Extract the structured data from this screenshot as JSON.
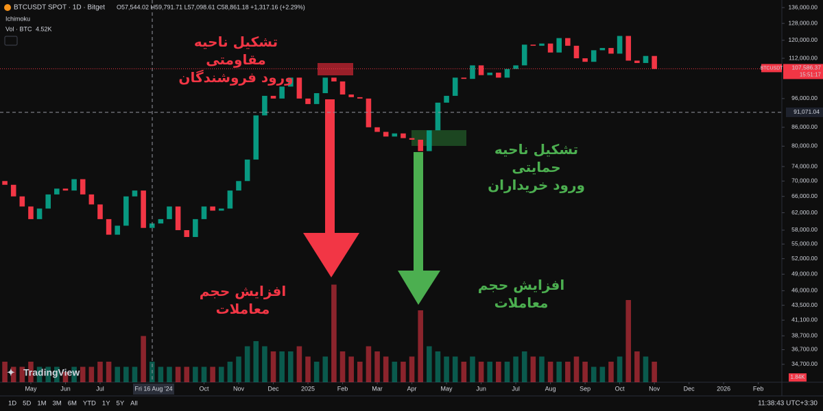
{
  "chart_data": {
    "type": "candlestick",
    "symbol_title": "BTCUSDT SPOT · 1D · Bitget",
    "ohlc_legend": "O57,544.02 H59,791.71 L57,098.61 C58,861.18 +1,317.16 (+2.29%)",
    "indicator": "Ichimoku",
    "volume_title": "Vol · BTC",
    "volume_value": "4.52K",
    "log_scale": true,
    "up_color": "#089981",
    "down_color": "#f23645",
    "ylim": [
      32400,
      140000
    ],
    "yticks": [
      {
        "value": 136000,
        "label": "136,000.00"
      },
      {
        "value": 128000,
        "label": "128,000.00"
      },
      {
        "value": 120000,
        "label": "120,000.00"
      },
      {
        "value": 112000,
        "label": "112,000.00"
      },
      {
        "value": 96000,
        "label": "96,000.00"
      },
      {
        "value": 86000,
        "label": "86,000.00"
      },
      {
        "value": 80000,
        "label": "80,000.00"
      },
      {
        "value": 74000,
        "label": "74,000.00"
      },
      {
        "value": 70000,
        "label": "70,000.00"
      },
      {
        "value": 66000,
        "label": "66,000.00"
      },
      {
        "value": 62000,
        "label": "62,000.00"
      },
      {
        "value": 58000,
        "label": "58,000.00"
      },
      {
        "value": 55000,
        "label": "55,000.00"
      },
      {
        "value": 52000,
        "label": "52,000.00"
      },
      {
        "value": 49000,
        "label": "49,000.00"
      },
      {
        "value": 46000,
        "label": "46,000.00"
      },
      {
        "value": 43500,
        "label": "43,500.00"
      },
      {
        "value": 41100,
        "label": "41,100.00"
      },
      {
        "value": 38700,
        "label": "38,700.00"
      },
      {
        "value": 36700,
        "label": "36,700.00"
      },
      {
        "value": 34700,
        "label": "34,700.00"
      }
    ],
    "xlim": [
      3.11,
      25.68
    ],
    "xticks": [
      {
        "value": 4,
        "label": "May"
      },
      {
        "value": 5,
        "label": "Jun"
      },
      {
        "value": 6,
        "label": "Jul"
      },
      {
        "value": 9,
        "label": "Oct"
      },
      {
        "value": 10,
        "label": "Nov"
      },
      {
        "value": 11,
        "label": "Dec"
      },
      {
        "value": 12,
        "label": "2025"
      },
      {
        "value": 13,
        "label": "Feb"
      },
      {
        "value": 14,
        "label": "Mar"
      },
      {
        "value": 15,
        "label": "Apr"
      },
      {
        "value": 16,
        "label": "May"
      },
      {
        "value": 17,
        "label": "Jun"
      },
      {
        "value": 18,
        "label": "Jul"
      },
      {
        "value": 19,
        "label": "Aug"
      },
      {
        "value": 20,
        "label": "Sep"
      },
      {
        "value": 21,
        "label": "Oct"
      },
      {
        "value": 22,
        "label": "Nov"
      },
      {
        "value": 23,
        "label": "Dec"
      },
      {
        "value": 24,
        "label": "2026"
      },
      {
        "value": 25,
        "label": "Feb"
      }
    ],
    "x": [
      3.25,
      3.5,
      3.75,
      4,
      4.25,
      4.5,
      4.75,
      5,
      5.25,
      5.5,
      5.75,
      6,
      6.25,
      6.5,
      6.75,
      7,
      7.25,
      7.5,
      7.75,
      8,
      8.25,
      8.5,
      8.75,
      9,
      9.25,
      9.5,
      9.75,
      10,
      10.25,
      10.5,
      10.75,
      11,
      11.25,
      11.5,
      11.75,
      12,
      12.25,
      12.5,
      12.75,
      13,
      13.25,
      13.5,
      13.75,
      14,
      14.25,
      14.5,
      14.75,
      15,
      15.25,
      15.5,
      15.75,
      16,
      16.25,
      16.5,
      16.75,
      17,
      17.25,
      17.5,
      17.75,
      18,
      18.25,
      18.5,
      18.75,
      19,
      19.25,
      19.5,
      19.75,
      20,
      20.25,
      20.5,
      20.75,
      21,
      21.25,
      21.5,
      21.75,
      22
    ],
    "open": [
      70000,
      69000,
      66000,
      63500,
      60500,
      63000,
      66500,
      68000,
      67500,
      70500,
      66500,
      64000,
      60500,
      57000,
      59000,
      66000,
      67500,
      58500,
      59500,
      60500,
      63500,
      58000,
      56500,
      60500,
      63500,
      62500,
      63000,
      67500,
      70000,
      76000,
      90000,
      97000,
      96000,
      100500,
      104000,
      96000,
      94000,
      98000,
      104000,
      102500,
      97500,
      96500,
      96000,
      86000,
      84500,
      83000,
      84000,
      82500,
      82000,
      78500,
      85000,
      94500,
      97000,
      104000,
      103500,
      109000,
      105000,
      106000,
      104000,
      107500,
      109000,
      118000,
      117500,
      118500,
      114500,
      121000,
      117500,
      112000,
      110500,
      115500,
      116500,
      114000,
      122000,
      111000,
      110000,
      113000
    ],
    "close": [
      69000,
      66000,
      63500,
      60500,
      63000,
      66500,
      68000,
      67500,
      70500,
      66500,
      64000,
      60500,
      57000,
      59000,
      66000,
      67500,
      58500,
      59500,
      60500,
      63500,
      58000,
      56500,
      60500,
      63500,
      62500,
      63000,
      67500,
      70000,
      76000,
      90000,
      97000,
      96000,
      100500,
      104000,
      96000,
      94000,
      98000,
      104000,
      102500,
      97500,
      96500,
      96000,
      86000,
      84500,
      83000,
      84000,
      82500,
      82000,
      78500,
      85000,
      94500,
      97000,
      104000,
      103500,
      109000,
      105000,
      106000,
      104000,
      107500,
      109000,
      118000,
      117500,
      118500,
      114500,
      121000,
      117500,
      112000,
      110500,
      115500,
      116500,
      114000,
      122000,
      111000,
      110000,
      113000,
      107500
    ],
    "vlim": [
      0,
      20
    ],
    "volume": [
      4,
      3,
      3,
      4,
      3,
      3,
      3,
      2,
      3,
      3,
      3,
      4,
      4,
      3,
      3,
      3,
      9,
      4,
      3,
      3,
      3,
      3,
      3,
      3,
      3,
      3,
      4,
      5,
      7,
      8,
      7,
      6,
      6,
      6,
      7,
      5,
      4,
      5,
      19,
      6,
      5,
      4,
      7,
      6,
      5,
      4,
      4,
      5,
      14,
      7,
      6,
      5,
      5,
      4,
      5,
      4,
      4,
      4,
      4,
      5,
      6,
      5,
      5,
      4,
      4,
      4,
      5,
      4,
      3,
      3,
      4,
      5,
      16,
      6,
      5,
      4
    ],
    "volume_last_label": "1.84K",
    "price_line": {
      "value": 107586.37,
      "label": "107,586.37",
      "symbol": "BTCUSDT",
      "countdown": "15:51:17"
    },
    "crosshair": {
      "value": 91071.04,
      "label": "91,071.04",
      "date_label": "Fri 16 Aug '24"
    },
    "annotations": {
      "resistance_line1": "تشکیل ناحیه مقاومتی",
      "resistance_line2": "ورود فروشندگان",
      "support_line1": "تشکیل ناحیه حمایتی",
      "support_line2": "ورود خریداران",
      "volume_red": "افزایش حجم معاملات",
      "volume_green": "افزایش حجم معاملات"
    }
  },
  "ui": {
    "timeframes": [
      "1D",
      "5D",
      "1M",
      "3M",
      "6M",
      "YTD",
      "1Y",
      "5Y",
      "All"
    ],
    "clock": "11:38:43 UTC+3:30",
    "brand": "TradingView"
  }
}
